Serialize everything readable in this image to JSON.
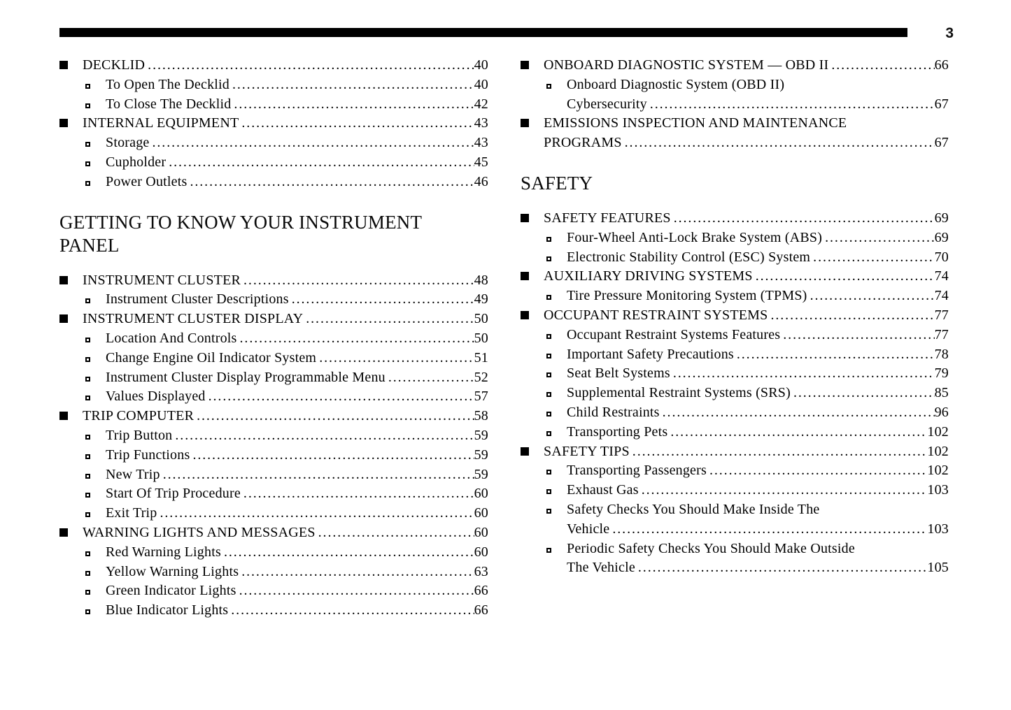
{
  "page": {
    "number": "3"
  },
  "toc": {
    "left_column": {
      "sections": [
        {
          "heading_lines": null,
          "items": [
            {
              "level": 1,
              "lines": [
                "DECKLID"
              ],
              "page": "40"
            },
            {
              "level": 2,
              "lines": [
                "To Open The Decklid"
              ],
              "page": "40"
            },
            {
              "level": 2,
              "lines": [
                "To Close The Decklid"
              ],
              "page": "42"
            },
            {
              "level": 1,
              "lines": [
                "INTERNAL EQUIPMENT"
              ],
              "page": "43"
            },
            {
              "level": 2,
              "lines": [
                "Storage"
              ],
              "page": "43"
            },
            {
              "level": 2,
              "lines": [
                "Cupholder"
              ],
              "page": "45"
            },
            {
              "level": 2,
              "lines": [
                "Power Outlets"
              ],
              "page": "46"
            }
          ]
        },
        {
          "heading_lines": [
            "GETTING TO KNOW YOUR INSTRUMENT",
            "PANEL"
          ],
          "items": [
            {
              "level": 1,
              "lines": [
                "INSTRUMENT CLUSTER"
              ],
              "page": "48"
            },
            {
              "level": 2,
              "lines": [
                "Instrument Cluster Descriptions"
              ],
              "page": "49"
            },
            {
              "level": 1,
              "lines": [
                "INSTRUMENT CLUSTER DISPLAY"
              ],
              "page": "50"
            },
            {
              "level": 2,
              "lines": [
                "Location And Controls"
              ],
              "page": "50"
            },
            {
              "level": 2,
              "lines": [
                "Change Engine Oil Indicator System"
              ],
              "page": "51"
            },
            {
              "level": 2,
              "lines": [
                "Instrument Cluster Display Programmable Menu"
              ],
              "page": "52"
            },
            {
              "level": 2,
              "lines": [
                "Values Displayed"
              ],
              "page": "57"
            },
            {
              "level": 1,
              "lines": [
                "TRIP COMPUTER"
              ],
              "page": "58"
            },
            {
              "level": 2,
              "lines": [
                "Trip Button"
              ],
              "page": "59"
            },
            {
              "level": 2,
              "lines": [
                "Trip Functions"
              ],
              "page": "59"
            },
            {
              "level": 2,
              "lines": [
                "New Trip"
              ],
              "page": "59"
            },
            {
              "level": 2,
              "lines": [
                "Start Of Trip Procedure"
              ],
              "page": "60"
            },
            {
              "level": 2,
              "lines": [
                "Exit Trip"
              ],
              "page": "60"
            },
            {
              "level": 1,
              "lines": [
                "WARNING LIGHTS AND MESSAGES"
              ],
              "page": "60"
            },
            {
              "level": 2,
              "lines": [
                "Red Warning Lights"
              ],
              "page": "60"
            },
            {
              "level": 2,
              "lines": [
                "Yellow Warning Lights"
              ],
              "page": "63"
            },
            {
              "level": 2,
              "lines": [
                "Green Indicator Lights"
              ],
              "page": "66"
            },
            {
              "level": 2,
              "lines": [
                "Blue Indicator Lights"
              ],
              "page": "66"
            }
          ]
        }
      ]
    },
    "right_column": {
      "sections": [
        {
          "heading_lines": null,
          "items": [
            {
              "level": 1,
              "lines": [
                "ONBOARD DIAGNOSTIC SYSTEM — OBD II"
              ],
              "page": "66"
            },
            {
              "level": 2,
              "lines": [
                "Onboard Diagnostic System (OBD II)",
                "Cybersecurity"
              ],
              "page": "67"
            },
            {
              "level": 1,
              "lines": [
                "EMISSIONS INSPECTION AND MAINTENANCE",
                "PROGRAMS"
              ],
              "page": "67"
            }
          ]
        },
        {
          "heading_lines": [
            "SAFETY"
          ],
          "items": [
            {
              "level": 1,
              "lines": [
                "SAFETY FEATURES"
              ],
              "page": "69"
            },
            {
              "level": 2,
              "lines": [
                "Four-Wheel Anti-Lock Brake System (ABS)"
              ],
              "page": "69"
            },
            {
              "level": 2,
              "lines": [
                "Electronic Stability Control (ESC) System"
              ],
              "page": "70"
            },
            {
              "level": 1,
              "lines": [
                "AUXILIARY DRIVING SYSTEMS"
              ],
              "page": "74"
            },
            {
              "level": 2,
              "lines": [
                "Tire Pressure Monitoring System (TPMS)"
              ],
              "page": "74"
            },
            {
              "level": 1,
              "lines": [
                "OCCUPANT RESTRAINT SYSTEMS"
              ],
              "page": "77"
            },
            {
              "level": 2,
              "lines": [
                "Occupant Restraint Systems Features"
              ],
              "page": "77"
            },
            {
              "level": 2,
              "lines": [
                "Important Safety Precautions"
              ],
              "page": "78"
            },
            {
              "level": 2,
              "lines": [
                "Seat Belt Systems"
              ],
              "page": "79"
            },
            {
              "level": 2,
              "lines": [
                "Supplemental Restraint Systems (SRS)"
              ],
              "page": "85"
            },
            {
              "level": 2,
              "lines": [
                "Child Restraints"
              ],
              "page": "96"
            },
            {
              "level": 2,
              "lines": [
                "Transporting Pets"
              ],
              "page": "102"
            },
            {
              "level": 1,
              "lines": [
                "SAFETY TIPS"
              ],
              "page": "102"
            },
            {
              "level": 2,
              "lines": [
                "Transporting Passengers"
              ],
              "page": "102"
            },
            {
              "level": 2,
              "lines": [
                "Exhaust Gas"
              ],
              "page": "103"
            },
            {
              "level": 2,
              "lines": [
                "Safety Checks You Should Make Inside The",
                "Vehicle"
              ],
              "page": "103"
            },
            {
              "level": 2,
              "lines": [
                "Periodic Safety Checks You Should Make Outside",
                "The Vehicle"
              ],
              "page": "105"
            }
          ]
        }
      ]
    }
  }
}
